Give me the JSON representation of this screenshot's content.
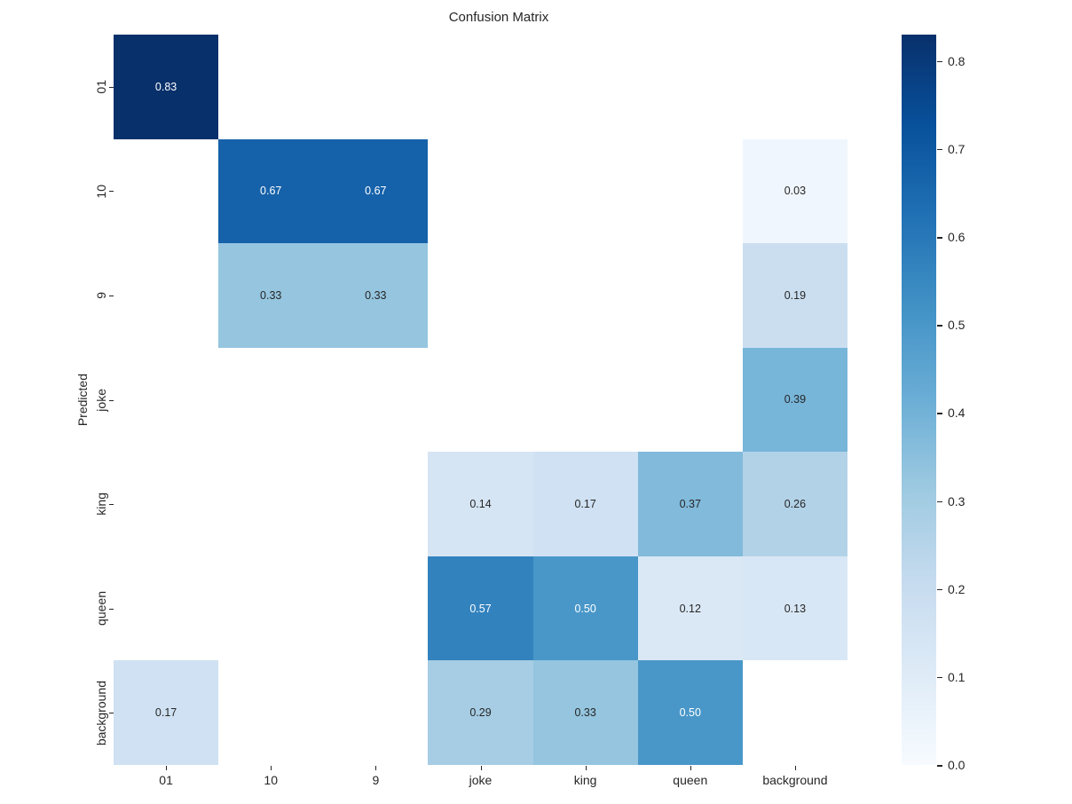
{
  "chart_data": {
    "type": "heatmap",
    "title": "Confusion Matrix",
    "xlabel": "",
    "ylabel": "Predicted",
    "x_categories": [
      "01",
      "10",
      "9",
      "joke",
      "king",
      "queen",
      "background"
    ],
    "y_categories": [
      "01",
      "10",
      "9",
      "joke",
      "king",
      "queen",
      "background"
    ],
    "matrix": [
      [
        0.83,
        null,
        null,
        null,
        null,
        null,
        null
      ],
      [
        null,
        0.67,
        0.67,
        null,
        null,
        null,
        0.03
      ],
      [
        null,
        0.33,
        0.33,
        null,
        null,
        null,
        0.19
      ],
      [
        null,
        null,
        null,
        null,
        null,
        null,
        0.39
      ],
      [
        null,
        null,
        null,
        0.14,
        0.17,
        0.37,
        0.26
      ],
      [
        null,
        null,
        null,
        0.57,
        0.5,
        0.12,
        0.13
      ],
      [
        0.17,
        null,
        null,
        0.29,
        0.33,
        0.5,
        null
      ]
    ],
    "annotation_decimals": 2,
    "vmin": 0.0,
    "vmax": 0.83,
    "colormap": "Blues",
    "colormap_stops": [
      {
        "pos": 0.0,
        "color": "#f7fbff"
      },
      {
        "pos": 0.125,
        "color": "#deebf7"
      },
      {
        "pos": 0.25,
        "color": "#c6dbef"
      },
      {
        "pos": 0.375,
        "color": "#9ecae1"
      },
      {
        "pos": 0.5,
        "color": "#6baed6"
      },
      {
        "pos": 0.625,
        "color": "#4292c6"
      },
      {
        "pos": 0.75,
        "color": "#2171b5"
      },
      {
        "pos": 0.875,
        "color": "#08519c"
      },
      {
        "pos": 1.0,
        "color": "#08306b"
      }
    ],
    "colorbar_ticks": [
      0.0,
      0.1,
      0.2,
      0.3,
      0.4,
      0.5,
      0.6,
      0.7,
      0.8
    ],
    "colorbar_tick_labels": [
      "0.0",
      "0.1",
      "0.2",
      "0.3",
      "0.4",
      "0.5",
      "0.6",
      "0.7",
      "0.8"
    ],
    "empty_cell_color": "#ffffff",
    "annotation_text_light": "#ffffff",
    "annotation_text_dark": "#262626",
    "legend_position": "right-colorbar",
    "grid": "off"
  }
}
